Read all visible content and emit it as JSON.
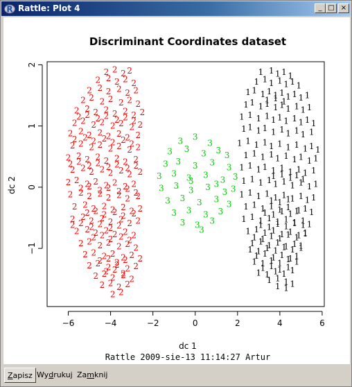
{
  "window": {
    "title": "Rattle: Plot 4",
    "minimize": "_",
    "maximize": "□",
    "close": "×"
  },
  "chart_data": {
    "type": "scatter",
    "title": "Discriminant Coordinates dataset",
    "subtitle": "Rattle 2009-sie-13 11:14:27 Artur",
    "xlabel": "dc 1",
    "ylabel": "dc 2",
    "xlim": [
      -7,
      6.1
    ],
    "ylim": [
      -1.95,
      2.05
    ],
    "xticks": [
      -6,
      -4,
      -2,
      0,
      2,
      4,
      6
    ],
    "yticks": [
      -1,
      0,
      1,
      2
    ],
    "grid": false,
    "legend": "none",
    "marker": "class digit",
    "series": [
      {
        "name": "1",
        "color": "#000000",
        "x": [
          3.1,
          3.6,
          3.9,
          4.2,
          4.5,
          2.9,
          3.3,
          3.6,
          4.0,
          4.3,
          4.6,
          4.9,
          2.5,
          2.8,
          3.2,
          3.5,
          3.8,
          4.1,
          4.4,
          4.7,
          5.0,
          5.3,
          2.4,
          2.7,
          3.1,
          3.4,
          3.8,
          4.1,
          4.4,
          4.8,
          5.1,
          5.4,
          2.2,
          2.6,
          3.0,
          3.4,
          3.7,
          4.0,
          4.3,
          4.7,
          5.0,
          5.3,
          5.6,
          2.3,
          2.6,
          3.0,
          3.3,
          3.7,
          4.1,
          4.4,
          4.8,
          5.1,
          5.5,
          2.1,
          2.5,
          2.9,
          3.3,
          3.6,
          4.0,
          4.4,
          4.8,
          5.2,
          5.5,
          5.8,
          2.4,
          2.8,
          3.2,
          3.6,
          3.9,
          4.3,
          4.7,
          5.0,
          5.4,
          5.7,
          2.2,
          2.6,
          3.0,
          3.3,
          3.7,
          4.1,
          4.5,
          4.9,
          5.2,
          5.6,
          2.3,
          2.7,
          3.1,
          3.5,
          3.8,
          4.2,
          4.6,
          5.0,
          5.4,
          5.7,
          2.2,
          2.6,
          3.0,
          3.4,
          3.8,
          4.2,
          4.6,
          5.0,
          5.3,
          5.6,
          2.4,
          2.8,
          3.2,
          3.6,
          4.0,
          4.4,
          4.8,
          5.2,
          5.5,
          2.3,
          2.7,
          3.1,
          3.5,
          3.9,
          4.3,
          4.7,
          5.1,
          5.4,
          2.5,
          2.9,
          3.3,
          3.7,
          4.1,
          4.5,
          4.9,
          5.2,
          2.7,
          3.1,
          3.5,
          3.9,
          4.3,
          4.7,
          5.0,
          2.9,
          3.3,
          3.7,
          4.1,
          4.5,
          4.8,
          3.2,
          3.6,
          4.0,
          4.4,
          3.5,
          3.9,
          4.3,
          3.0,
          3.4,
          3.8,
          4.2,
          4.6,
          2.8,
          3.2,
          3.6,
          4.0,
          4.4,
          4.8,
          2.6,
          3.0,
          3.4,
          3.8,
          4.2,
          4.6,
          5.0,
          2.8,
          3.2,
          3.6,
          4.0,
          4.4,
          4.8,
          5.2,
          3.1,
          3.5,
          3.9,
          4.3,
          4.7,
          5.1,
          3.3,
          3.7,
          4.1,
          4.5,
          4.9,
          3.6,
          4.0,
          4.4,
          3.9,
          4.3,
          4.6,
          3.7,
          4.1,
          4.5,
          4.8,
          5.1,
          3.4,
          3.8,
          4.2
        ],
        "y": [
          1.88,
          1.9,
          1.85,
          1.88,
          1.82,
          1.72,
          1.76,
          1.7,
          1.74,
          1.68,
          1.72,
          1.66,
          1.55,
          1.58,
          1.52,
          1.56,
          1.5,
          1.54,
          1.48,
          1.52,
          1.46,
          1.5,
          1.35,
          1.38,
          1.32,
          1.36,
          1.3,
          1.34,
          1.28,
          1.32,
          1.26,
          1.3,
          1.15,
          1.18,
          1.12,
          1.16,
          1.1,
          1.14,
          1.08,
          1.12,
          1.06,
          1.1,
          1.04,
          0.95,
          0.98,
          0.92,
          0.96,
          0.9,
          0.94,
          0.88,
          0.92,
          0.86,
          0.9,
          0.72,
          0.75,
          0.69,
          0.73,
          0.67,
          0.71,
          0.65,
          0.69,
          0.63,
          0.67,
          0.61,
          0.52,
          0.55,
          0.49,
          0.53,
          0.47,
          0.51,
          0.45,
          0.49,
          0.43,
          0.47,
          0.32,
          0.35,
          0.29,
          0.33,
          0.27,
          0.31,
          0.25,
          0.29,
          0.23,
          0.27,
          0.1,
          0.13,
          0.07,
          0.11,
          0.05,
          0.09,
          0.03,
          0.07,
          0.01,
          0.05,
          -0.12,
          -0.09,
          -0.15,
          -0.11,
          -0.17,
          -0.13,
          -0.19,
          -0.15,
          -0.21,
          -0.17,
          -0.32,
          -0.29,
          -0.35,
          -0.31,
          -0.37,
          -0.33,
          -0.39,
          -0.35,
          -0.41,
          -0.52,
          -0.49,
          -0.55,
          -0.51,
          -0.57,
          -0.53,
          -0.59,
          -0.55,
          -0.61,
          -0.72,
          -0.69,
          -0.75,
          -0.71,
          -0.77,
          -0.73,
          -0.79,
          -0.75,
          -0.92,
          -0.89,
          -0.95,
          -0.91,
          -0.97,
          -0.93,
          -0.99,
          -1.12,
          -1.09,
          -1.15,
          -1.11,
          -1.17,
          -1.13,
          -1.32,
          -1.29,
          -1.35,
          -1.31,
          -1.52,
          -1.49,
          -1.55,
          -1.4,
          -1.43,
          -1.38,
          -1.42,
          -1.36,
          -1.22,
          -1.25,
          -1.2,
          -1.24,
          -1.18,
          -1.22,
          -1.02,
          -1.05,
          -1.0,
          -1.04,
          -0.98,
          -1.02,
          -0.96,
          -0.82,
          -0.85,
          -0.8,
          -0.84,
          -0.78,
          -0.82,
          -0.76,
          -0.62,
          -0.65,
          -0.6,
          -0.64,
          -0.58,
          -0.62,
          -0.42,
          -0.45,
          -0.4,
          -0.44,
          -0.38,
          -0.22,
          -0.25,
          -0.2,
          -1.62,
          -1.65,
          -1.58,
          0.18,
          0.21,
          0.15,
          0.19,
          0.13,
          1.42,
          1.45,
          1.4
        ]
      },
      {
        "name": "2",
        "color": "#ff0000",
        "x": [
          -4.2,
          -3.8,
          -3.4,
          -3.1,
          -4.6,
          -4.1,
          -3.7,
          -3.3,
          -2.9,
          -5.0,
          -4.5,
          -4.1,
          -3.6,
          -3.2,
          -2.8,
          -5.3,
          -4.9,
          -4.4,
          -4.0,
          -3.5,
          -3.1,
          -2.7,
          -5.6,
          -5.1,
          -4.7,
          -4.2,
          -3.8,
          -3.3,
          -2.9,
          -2.5,
          -5.7,
          -5.3,
          -4.8,
          -4.4,
          -3.9,
          -3.5,
          -3.0,
          -2.6,
          -5.9,
          -5.4,
          -5.0,
          -4.5,
          -4.1,
          -3.6,
          -3.2,
          -2.7,
          -5.8,
          -5.4,
          -4.9,
          -4.5,
          -4.0,
          -3.6,
          -3.1,
          -2.7,
          -6.0,
          -5.5,
          -5.1,
          -4.6,
          -4.2,
          -3.7,
          -3.3,
          -2.8,
          -5.8,
          -5.3,
          -4.9,
          -4.4,
          -4.0,
          -3.5,
          -3.1,
          -2.6,
          -6.0,
          -5.6,
          -5.1,
          -4.7,
          -4.2,
          -3.8,
          -3.3,
          -2.9,
          -5.9,
          -5.4,
          -5.0,
          -4.5,
          -4.1,
          -3.6,
          -3.2,
          -2.7,
          -5.7,
          -5.2,
          -4.8,
          -4.3,
          -3.9,
          -3.4,
          -3.0,
          -2.6,
          -5.8,
          -5.3,
          -4.9,
          -4.4,
          -4.0,
          -3.5,
          -3.1,
          -2.7,
          -5.6,
          -5.1,
          -4.7,
          -4.2,
          -3.8,
          -3.3,
          -2.9,
          -5.4,
          -5.0,
          -4.5,
          -4.1,
          -3.6,
          -3.2,
          -2.8,
          -5.2,
          -4.8,
          -4.3,
          -3.9,
          -3.4,
          -3.0,
          -2.6,
          -5.0,
          -4.6,
          -4.1,
          -3.7,
          -3.2,
          -2.8,
          -4.7,
          -4.3,
          -3.9,
          -3.4,
          -3.0,
          -4.4,
          -4.0,
          -3.6,
          -3.2,
          -3.9,
          -3.5,
          -5.5,
          -5.1,
          -4.6,
          -4.2,
          -3.7,
          -3.3,
          -2.9,
          -5.7,
          -5.2,
          -4.8,
          -4.3,
          -3.9,
          -3.4,
          -3.0,
          -5.4,
          -5.0,
          -4.5,
          -4.1,
          -3.6,
          -3.2,
          -2.8,
          -5.1,
          -4.7,
          -4.3,
          -3.8,
          -3.4,
          -2.9,
          -4.8,
          -4.4,
          -4.0,
          -3.5,
          -3.1,
          -4.5,
          -4.1,
          -3.7,
          -3.3,
          -4.2,
          -3.8,
          -3.4,
          -5.9,
          -5.5,
          -5.0,
          -4.6,
          -4.1,
          -3.7,
          -3.2,
          -2.8,
          -5.8,
          -5.4,
          -4.9,
          -4.5,
          -4.0,
          -3.6
        ],
        "y": [
          1.88,
          1.92,
          1.86,
          1.9,
          1.75,
          1.78,
          1.72,
          1.76,
          1.7,
          1.58,
          1.62,
          1.56,
          1.6,
          1.54,
          1.58,
          1.42,
          1.46,
          1.4,
          1.44,
          1.38,
          1.42,
          1.36,
          1.25,
          1.28,
          1.22,
          1.26,
          1.2,
          1.24,
          1.18,
          1.22,
          1.05,
          1.08,
          1.02,
          1.06,
          1.0,
          1.04,
          0.98,
          1.02,
          0.88,
          0.91,
          0.85,
          0.89,
          0.83,
          0.87,
          0.81,
          0.85,
          0.68,
          0.71,
          0.65,
          0.69,
          0.63,
          0.67,
          0.61,
          0.65,
          0.48,
          0.51,
          0.45,
          0.49,
          0.43,
          0.47,
          0.41,
          0.45,
          0.28,
          0.31,
          0.25,
          0.29,
          0.23,
          0.27,
          0.21,
          0.25,
          0.08,
          0.11,
          0.05,
          0.09,
          0.03,
          0.07,
          0.01,
          0.05,
          -0.12,
          -0.09,
          -0.15,
          -0.11,
          -0.17,
          -0.13,
          -0.19,
          -0.15,
          -0.32,
          -0.29,
          -0.35,
          -0.31,
          -0.37,
          -0.33,
          -0.39,
          -0.35,
          -0.52,
          -0.49,
          -0.55,
          -0.51,
          -0.57,
          -0.53,
          -0.59,
          -0.55,
          -0.72,
          -0.69,
          -0.75,
          -0.71,
          -0.77,
          -0.73,
          -0.79,
          -0.92,
          -0.89,
          -0.95,
          -0.91,
          -0.97,
          -0.93,
          -0.99,
          -1.1,
          -1.07,
          -1.13,
          -1.09,
          -1.15,
          -1.11,
          -1.17,
          -1.28,
          -1.25,
          -1.31,
          -1.27,
          -1.33,
          -1.29,
          -1.45,
          -1.42,
          -1.48,
          -1.44,
          -1.5,
          -1.6,
          -1.57,
          -1.63,
          -1.59,
          -1.75,
          -1.72,
          1.15,
          1.18,
          1.12,
          1.16,
          1.1,
          1.14,
          1.08,
          0.78,
          0.81,
          0.75,
          0.79,
          0.73,
          0.77,
          0.71,
          -0.02,
          0.01,
          -0.05,
          -0.01,
          -0.07,
          -0.03,
          -0.09,
          -0.42,
          -0.39,
          -0.45,
          -0.41,
          -0.47,
          -0.43,
          -0.82,
          -0.79,
          -0.85,
          -0.81,
          -0.87,
          -1.2,
          -1.17,
          -1.23,
          -1.19,
          -1.38,
          -1.35,
          -1.41,
          0.38,
          0.41,
          0.35,
          0.39,
          0.33,
          0.37,
          0.31,
          0.35,
          -0.62,
          -0.59,
          -0.65,
          -0.61,
          -0.67,
          -0.63
        ]
      },
      {
        "name": "3",
        "color": "#00cc00",
        "x": [
          -0.7,
          0.0,
          0.7,
          -1.2,
          -0.4,
          0.4,
          1.1,
          1.5,
          -1.4,
          -0.8,
          0.0,
          0.8,
          1.6,
          -1.7,
          -1.0,
          -0.3,
          0.5,
          1.3,
          1.9,
          -1.6,
          -0.9,
          -0.2,
          0.6,
          1.4,
          1.8,
          -1.3,
          -0.6,
          0.2,
          1.0,
          1.6,
          -1.0,
          -0.3,
          0.5,
          1.2,
          -0.6,
          0.1,
          0.8,
          -0.2,
          1.0,
          0.3
        ],
        "y": [
          0.75,
          0.82,
          0.72,
          0.58,
          0.62,
          0.55,
          0.6,
          0.52,
          0.38,
          0.42,
          0.35,
          0.4,
          0.32,
          0.18,
          0.22,
          0.15,
          0.2,
          0.12,
          0.17,
          -0.02,
          0.02,
          -0.05,
          0.0,
          -0.08,
          -0.03,
          -0.22,
          -0.18,
          -0.25,
          -0.2,
          -0.28,
          -0.42,
          -0.38,
          -0.45,
          -0.4,
          -0.58,
          -0.62,
          -0.55,
          0.1,
          0.05,
          -0.7
        ]
      }
    ]
  },
  "footer": {
    "save": {
      "pre": "",
      "u": "Z",
      "post": "apisz"
    },
    "print": {
      "pre": "Wy",
      "u": "d",
      "post": "rukuj"
    },
    "close": {
      "pre": "Za",
      "u": "m",
      "post": "knij"
    }
  }
}
